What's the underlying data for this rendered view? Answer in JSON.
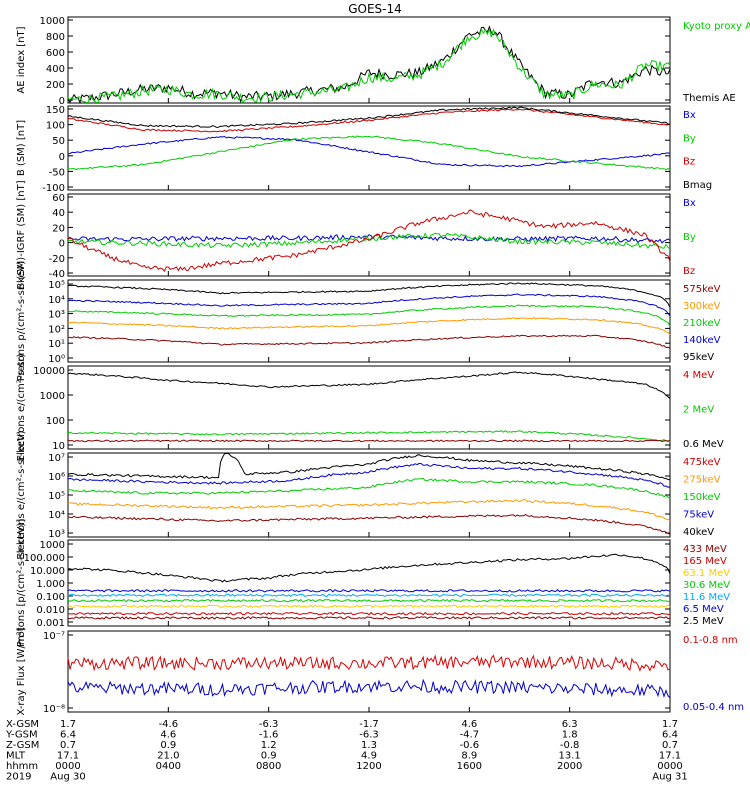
{
  "title": "GOES-14",
  "chart_data": [
    {
      "type": "line",
      "ylabel": "AE index [nT]",
      "ylim": [
        0,
        1000
      ],
      "yticks": [
        "0",
        "200",
        "400",
        "600",
        "800",
        "1000"
      ],
      "legend": [
        {
          "name": "Kyoto proxy AE",
          "color": "#00cc00"
        },
        {
          "name": "Themis AE",
          "color": "#000000"
        }
      ],
      "series": [
        {
          "name": "Themis AE",
          "color": "#000000",
          "t": [
            0,
            1,
            2,
            3,
            4,
            5,
            6,
            7,
            8,
            9,
            10,
            11,
            12,
            13,
            14,
            15,
            16,
            17,
            18,
            19,
            20,
            21,
            22,
            23,
            24
          ],
          "values": [
            30,
            60,
            110,
            160,
            180,
            110,
            120,
            70,
            80,
            110,
            150,
            180,
            350,
            330,
            350,
            500,
            800,
            850,
            450,
            120,
            90,
            260,
            230,
            390,
            340
          ]
        },
        {
          "name": "Kyoto proxy AE",
          "color": "#00cc00",
          "t": [
            0,
            1,
            2,
            3,
            4,
            5,
            6,
            7,
            8,
            9,
            10,
            11,
            12,
            13,
            14,
            15,
            16,
            17,
            18,
            19,
            20,
            21,
            22,
            23,
            24
          ],
          "values": [
            40,
            50,
            80,
            140,
            160,
            100,
            110,
            60,
            70,
            100,
            130,
            160,
            300,
            280,
            330,
            480,
            780,
            820,
            420,
            100,
            80,
            220,
            200,
            440,
            420
          ]
        }
      ]
    },
    {
      "type": "line",
      "ylabel": "B (SM) [nT]",
      "ylim": [
        -115,
        150
      ],
      "yticks": [
        "-100",
        "-50",
        "0",
        "50",
        "100",
        "150"
      ],
      "legend": [
        {
          "name": "Bx",
          "color": "#0000cc"
        },
        {
          "name": "By",
          "color": "#00cc00"
        },
        {
          "name": "Bz",
          "color": "#cc0000"
        },
        {
          "name": "Bmag",
          "color": "#000000"
        }
      ],
      "series": [
        {
          "name": "Bx",
          "color": "#0000cc",
          "t": [
            0,
            3,
            6,
            9,
            12,
            15,
            18,
            21,
            24
          ],
          "values": [
            0,
            30,
            52,
            45,
            5,
            -35,
            -40,
            -20,
            0
          ]
        },
        {
          "name": "By",
          "color": "#00cc00",
          "t": [
            0,
            3,
            6,
            9,
            12,
            15,
            18,
            21,
            24
          ],
          "values": [
            -50,
            -35,
            5,
            45,
            55,
            30,
            -10,
            -30,
            -50
          ]
        },
        {
          "name": "Bz",
          "color": "#cc0000",
          "t": [
            0,
            3,
            6,
            9,
            12,
            15,
            18,
            21,
            24
          ],
          "values": [
            110,
            75,
            70,
            85,
            105,
            130,
            140,
            115,
            90
          ]
        },
        {
          "name": "Bmag",
          "color": "#000000",
          "t": [
            0,
            3,
            6,
            9,
            12,
            15,
            18,
            21,
            24
          ],
          "values": [
            118,
            88,
            85,
            95,
            112,
            138,
            145,
            120,
            95
          ]
        }
      ]
    },
    {
      "type": "line",
      "ylabel": "B (SM)-IGRF (SM) [nT]",
      "ylim": [
        -40,
        60
      ],
      "yticks": [
        "-40",
        "-20",
        "0",
        "20",
        "40",
        "60"
      ],
      "legend": [
        {
          "name": "Bx",
          "color": "#0000cc"
        },
        {
          "name": "By",
          "color": "#00cc00"
        },
        {
          "name": "Bz",
          "color": "#cc0000"
        }
      ],
      "series": [
        {
          "name": "Bx",
          "color": "#0000cc",
          "t": [
            0,
            3,
            6,
            9,
            12,
            15,
            18,
            21,
            24
          ],
          "values": [
            5,
            5,
            6,
            6,
            8,
            6,
            5,
            6,
            2
          ]
        },
        {
          "name": "By",
          "color": "#00cc00",
          "t": [
            0,
            3,
            6,
            9,
            12,
            15,
            18,
            21,
            24
          ],
          "values": [
            2,
            0,
            -3,
            0,
            6,
            10,
            2,
            1,
            -5
          ]
        },
        {
          "name": "Bz",
          "color": "#cc0000",
          "t": [
            0,
            1.5,
            3,
            4.5,
            6,
            9,
            12,
            14,
            16,
            17.5,
            19,
            21,
            23,
            24
          ],
          "values": [
            5,
            -15,
            -30,
            -32,
            -25,
            -15,
            5,
            25,
            38,
            30,
            20,
            25,
            10,
            -20
          ]
        }
      ]
    },
    {
      "type": "line",
      "log": true,
      "ylabel": "Protons p/(cm²-s-sr-keV)",
      "ylim": [
        0.5,
        200000
      ],
      "yticks": [
        "10⁰",
        "10¹",
        "10²",
        "10³",
        "10⁴",
        "10⁵"
      ],
      "legend": [
        {
          "name": "575keV",
          "color": "#880000"
        },
        {
          "name": "300keV",
          "color": "#ff9900"
        },
        {
          "name": "210keV",
          "color": "#00cc00"
        },
        {
          "name": "140keV",
          "color": "#0000cc"
        },
        {
          "name": "95keV",
          "color": "#000000"
        }
      ],
      "series": [
        {
          "name": "95keV",
          "color": "#000000",
          "t": [
            0,
            6,
            12,
            18,
            21,
            24
          ],
          "values": [
            80000,
            25000,
            35000,
            120000,
            80000,
            3000
          ]
        },
        {
          "name": "140keV",
          "color": "#0000cc",
          "t": [
            0,
            6,
            12,
            18,
            21,
            24
          ],
          "values": [
            8000,
            3500,
            5000,
            20000,
            15000,
            700
          ]
        },
        {
          "name": "210keV",
          "color": "#00cc00",
          "t": [
            0,
            6,
            12,
            18,
            21,
            24
          ],
          "values": [
            1500,
            700,
            900,
            3500,
            3000,
            150
          ]
        },
        {
          "name": "300keV",
          "color": "#ff9900",
          "t": [
            0,
            6,
            12,
            18,
            21,
            24
          ],
          "values": [
            250,
            100,
            150,
            500,
            400,
            40
          ]
        },
        {
          "name": "575keV",
          "color": "#880000",
          "t": [
            0,
            6,
            12,
            18,
            21,
            24
          ],
          "values": [
            25,
            8,
            10,
            30,
            30,
            4
          ]
        }
      ]
    },
    {
      "type": "line",
      "log": true,
      "ylabel": "Electrons e/(cm²-s-sr)",
      "ylim": [
        10,
        12000
      ],
      "yticks": [
        "10",
        "100",
        "1000",
        "10000"
      ],
      "legend": [
        {
          "name": "4 MeV",
          "color": "#cc0000"
        },
        {
          "name": "2 MeV",
          "color": "#00cc00"
        },
        {
          "name": "0.6 MeV",
          "color": "#000000"
        }
      ],
      "series": [
        {
          "name": "0.6 MeV",
          "color": "#000000",
          "t": [
            0,
            4,
            8,
            12,
            16,
            18,
            21,
            23,
            24
          ],
          "values": [
            6500,
            3500,
            2000,
            2500,
            5000,
            7000,
            4000,
            2500,
            700
          ]
        },
        {
          "name": "2 MeV",
          "color": "#00cc00",
          "t": [
            0,
            6,
            12,
            18,
            24
          ],
          "values": [
            40,
            35,
            40,
            45,
            20
          ]
        },
        {
          "name": "4 MeV",
          "color": "#880000",
          "t": [
            0,
            6,
            12,
            18,
            24
          ],
          "values": [
            20,
            20,
            20,
            20,
            20
          ]
        }
      ]
    },
    {
      "type": "line",
      "log": true,
      "ylabel": "Electrons e/(cm²-s-sr-keV)",
      "ylim": [
        700,
        20000000
      ],
      "yticks": [
        "10³",
        "10⁴",
        "10⁵",
        "10⁶",
        "10⁷"
      ],
      "legend": [
        {
          "name": "475keV",
          "color": "#cc0000"
        },
        {
          "name": "275keV",
          "color": "#ff9900"
        },
        {
          "name": "150keV",
          "color": "#00cc00"
        },
        {
          "name": "75keV",
          "color": "#0000cc"
        },
        {
          "name": "40keV",
          "color": "#000000"
        }
      ],
      "series": [
        {
          "name": "40keV",
          "color": "#000000",
          "t": [
            0,
            3,
            6,
            6.3,
            7,
            9,
            12,
            14,
            16,
            18,
            21,
            24
          ],
          "values": [
            1500000,
            1200000,
            1000000,
            20000000,
            1500000,
            2000000,
            5000000,
            15000000,
            8000000,
            6000000,
            3000000,
            800000
          ]
        },
        {
          "name": "75keV",
          "color": "#0000cc",
          "t": [
            0,
            3,
            6,
            9,
            12,
            14,
            16,
            18,
            21,
            24
          ],
          "values": [
            800000,
            600000,
            500000,
            700000,
            2000000,
            5000000,
            3000000,
            3000000,
            1500000,
            300000
          ]
        },
        {
          "name": "150keV",
          "color": "#00cc00",
          "t": [
            0,
            3,
            6,
            9,
            12,
            14,
            16,
            18,
            21,
            24
          ],
          "values": [
            200000,
            150000,
            150000,
            200000,
            300000,
            800000,
            600000,
            600000,
            400000,
            80000
          ]
        },
        {
          "name": "275keV",
          "color": "#ff9900",
          "t": [
            0,
            6,
            12,
            18,
            24
          ],
          "values": [
            40000,
            25000,
            35000,
            60000,
            5000
          ]
        },
        {
          "name": "475keV",
          "color": "#880000",
          "t": [
            0,
            6,
            12,
            18,
            24
          ],
          "values": [
            8000,
            5000,
            7000,
            10000,
            1000
          ]
        }
      ]
    },
    {
      "type": "line",
      "log": true,
      "ylabel": "Protons [p/(cm²-s-sr-keV)]",
      "ylim": [
        0.0008,
        1000
      ],
      "yticks": [
        "0.001",
        "0.010",
        "0.100",
        "1.000",
        "10.000",
        "100.000",
        "1000"
      ],
      "legend": [
        {
          "name": "433 MeV",
          "color": "#880000"
        },
        {
          "name": "165 MeV",
          "color": "#cc0000"
        },
        {
          "name": "63.1 MeV",
          "color": "#ffcc00"
        },
        {
          "name": "30.6 MeV",
          "color": "#00cc00"
        },
        {
          "name": "11.6 MeV",
          "color": "#00aaff"
        },
        {
          "name": "6.5 MeV",
          "color": "#0000cc"
        },
        {
          "name": "2.5 MeV",
          "color": "#000000"
        }
      ],
      "series": [
        {
          "name": "2.5 MeV",
          "color": "#000000",
          "t": [
            0,
            4,
            6,
            8,
            12,
            16,
            18,
            20,
            22,
            24
          ],
          "values": [
            10,
            3,
            1.2,
            2,
            8,
            25,
            40,
            50,
            90,
            4
          ]
        },
        {
          "name": "6.5 MeV",
          "color": "#0000cc",
          "t": [
            0,
            24
          ],
          "values": [
            0.25,
            0.25
          ]
        },
        {
          "name": "11.6 MeV",
          "color": "#00aaff",
          "t": [
            0,
            24
          ],
          "values": [
            0.12,
            0.12
          ]
        },
        {
          "name": "30.6 MeV",
          "color": "#00cc00",
          "t": [
            0,
            24
          ],
          "values": [
            0.05,
            0.05
          ]
        },
        {
          "name": "63.1 MeV",
          "color": "#ffcc00",
          "t": [
            0,
            24
          ],
          "values": [
            0.02,
            0.02
          ]
        },
        {
          "name": "165 MeV",
          "color": "#cc0000",
          "t": [
            0,
            24
          ],
          "values": [
            0.006,
            0.006
          ]
        },
        {
          "name": "433 MeV",
          "color": "#880000",
          "t": [
            0,
            24
          ],
          "values": [
            0.003,
            0.003
          ]
        }
      ]
    },
    {
      "type": "line",
      "log": true,
      "ylabel": "X-ray Flux [W/m²]",
      "ylim": [
        1e-08,
        1e-07
      ],
      "yticks": [
        "10⁻⁸",
        "10⁻⁷"
      ],
      "legend": [
        {
          "name": "0.1-0.8 nm",
          "color": "#cc0000"
        },
        {
          "name": "0.05-0.4 nm",
          "color": "#0000cc"
        }
      ],
      "series": [
        {
          "name": "0.1-0.8 nm",
          "color": "#dd0000",
          "t": [
            0,
            6,
            12,
            18,
            24
          ],
          "values": [
            4e-08,
            4e-08,
            4e-08,
            4.2e-08,
            3.8e-08
          ]
        },
        {
          "name": "0.05-0.4 nm",
          "color": "#0000cc",
          "t": [
            0,
            6,
            12,
            18,
            24
          ],
          "values": [
            2e-08,
            1.9e-08,
            2.1e-08,
            2e-08,
            1.8e-08
          ]
        }
      ]
    }
  ],
  "xaxis": {
    "ticks": [
      0,
      4,
      8,
      12,
      16,
      20,
      24
    ],
    "rows": [
      {
        "label": "X-GSM",
        "values": [
          "1.7",
          "-4.6",
          "-6.3",
          "-1.7",
          "4.6",
          "6.3",
          "1.7"
        ]
      },
      {
        "label": "Y-GSM",
        "values": [
          "6.4",
          "4.6",
          "-1.6",
          "-6.3",
          "-4.7",
          "1.8",
          "6.4"
        ]
      },
      {
        "label": "Z-GSM",
        "values": [
          "0.7",
          "0.9",
          "1.2",
          "1.3",
          "-0.6",
          "-0.8",
          "0.7"
        ]
      },
      {
        "label": "MLT",
        "values": [
          "17.1",
          "21.0",
          "0.9",
          "4.9",
          "8.9",
          "13.1",
          "17.1"
        ]
      },
      {
        "label": "hhmm",
        "values": [
          "0000",
          "0400",
          "0800",
          "1200",
          "1600",
          "2000",
          "0000"
        ]
      },
      {
        "label": "2019",
        "values": [
          "Aug 30",
          "",
          "",
          "",
          "",
          "",
          "Aug 31"
        ]
      }
    ]
  }
}
